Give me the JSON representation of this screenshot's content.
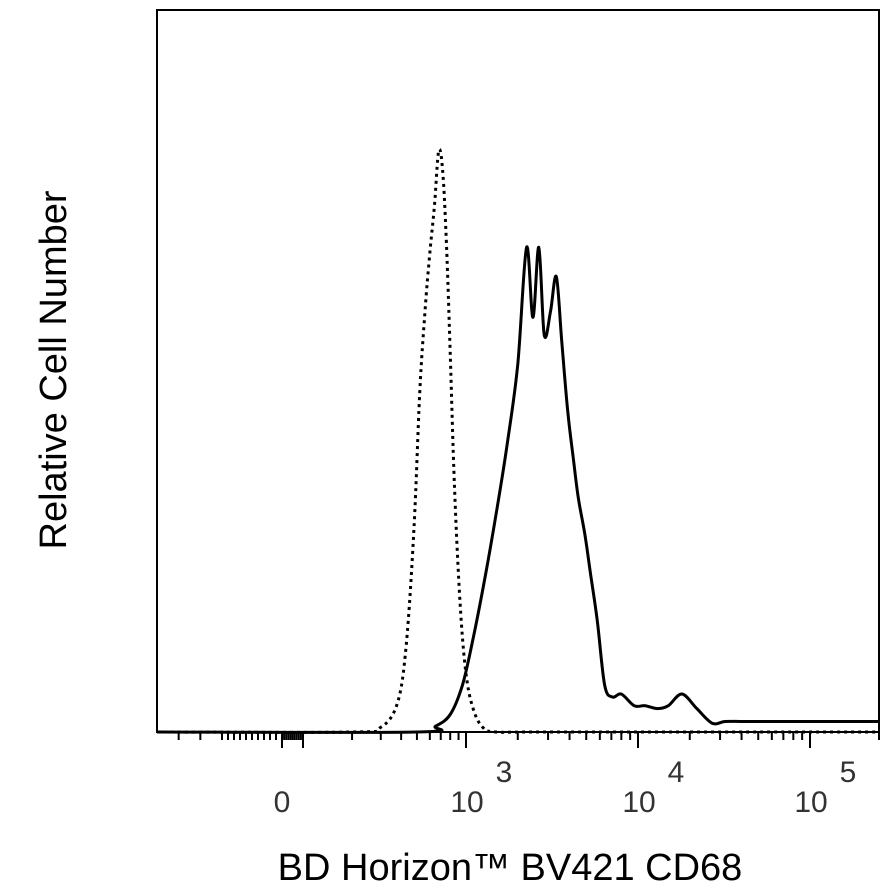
{
  "chart_data": {
    "type": "line",
    "xlabel": "BD Horizon™ BV421 CD68",
    "ylabel": "Relative Cell Number",
    "x_scale": "biexponential",
    "xlim": [
      -400,
      150000
    ],
    "ylim": [
      0,
      100
    ],
    "grid": false,
    "legend": "none",
    "x_ticks": [
      {
        "value": 0,
        "base": "0",
        "exp": ""
      },
      {
        "value": 1000,
        "base": "10",
        "exp": "3"
      },
      {
        "value": 10000,
        "base": "10",
        "exp": "4"
      },
      {
        "value": 100000,
        "base": "10",
        "exp": "5"
      }
    ],
    "series": [
      {
        "style": "dotted",
        "color": "#000000",
        "x": [
          -400,
          200,
          300,
          380,
          430,
          480,
          520,
          560,
          600,
          640,
          680,
          720,
          760,
          800,
          850,
          920,
          1000,
          1100,
          1250,
          1500,
          3000,
          150000
        ],
        "y": [
          0,
          0,
          0.8,
          5,
          15,
          35,
          58,
          72,
          82,
          90,
          99.5,
          96,
          83,
          65,
          42,
          22,
          10,
          4,
          0.8,
          0,
          0,
          0
        ]
      },
      {
        "style": "solid",
        "color": "#000000",
        "x": [
          -400,
          500,
          650,
          800,
          950,
          1100,
          1300,
          1550,
          1750,
          2000,
          2250,
          2450,
          2650,
          2850,
          3100,
          3350,
          3600,
          3900,
          4200,
          4500,
          4900,
          5300,
          5800,
          6400,
          7100,
          8000,
          9500,
          11000,
          13000,
          15000,
          18000,
          22000,
          27000,
          32000,
          40000,
          50000,
          60000,
          75000,
          90000,
          100000,
          110000,
          125000,
          140000,
          150000
        ],
        "y": [
          0,
          0,
          1,
          3,
          8,
          16,
          27,
          40,
          50,
          63,
          83,
          71,
          83,
          68,
          72,
          78,
          67,
          55,
          47,
          40,
          34,
          27,
          19,
          8,
          6,
          6.5,
          4.5,
          4.5,
          4,
          4.5,
          6.5,
          4,
          1.5,
          1.8,
          1.8,
          1.8,
          1.8,
          1.8,
          1.8,
          1.8,
          1.8,
          1.8,
          1.8,
          1.8
        ]
      }
    ]
  }
}
